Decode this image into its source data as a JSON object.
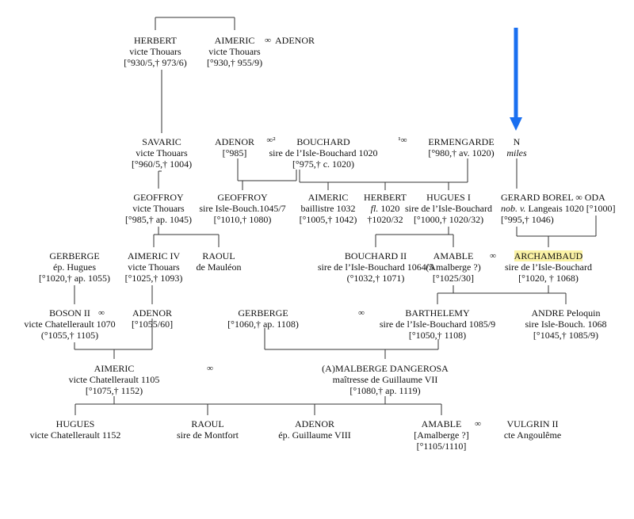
{
  "diagram": {
    "arrow_color": "#1a6ff0",
    "highlight_color": "#fbf3a6",
    "marriage_symbol": "∞",
    "marriage_symbol_2": "∞²",
    "marriage_symbol_1": "¹∞",
    "nodes": {
      "herbert_1": [
        "HERBERT",
        "victe Thouars",
        "[°930/5,† 973/6)"
      ],
      "aimeric_1": [
        "AIMERIC",
        "victe Thouars",
        "[°930,† 955/9)"
      ],
      "adenor_1": [
        "ADENOR"
      ],
      "savaric": [
        "SAVARIC",
        "victe Thouars",
        "[°960/5,† 1004)"
      ],
      "adenor_2": [
        "ADENOR",
        "[°985]"
      ],
      "bouchard_1": [
        "BOUCHARD",
        "sire de l’Isle-Bouchard 1020",
        "[°975,† c. 1020)"
      ],
      "ermengarde": [
        "ERMENGARDE",
        "[°980,† av. 1020)"
      ],
      "n_miles": [
        "N",
        "miles"
      ],
      "geoffroy_1": [
        "GEOFFROY",
        "victe Thouars",
        "[°985,† ap. 1045)"
      ],
      "geoffroy_2": [
        "GEOFFROY",
        "sire Isle-Bouch.1045/7",
        "[°1010,† 1080)"
      ],
      "aimeric_2": [
        "AIMERIC",
        "baillistre 1032",
        "[°1005,† 1042)"
      ],
      "herbert_2": [
        "HERBERT",
        "fl. 1020",
        "†1020/32"
      ],
      "hugues_1": [
        "HUGUES I",
        "sire de l’Isle-Bouchard",
        "[°1000,† 1020/32)"
      ],
      "gerard_borel": [
        "GERARD BOREL ∞ ODA",
        "nob. v. Langeais 1020 [°1000]",
        "[°995,† 1046)"
      ],
      "gerberge_1": [
        "GERBERGE",
        "ép. Hugues",
        "[°1020,† ap. 1055)"
      ],
      "aimeric_4": [
        "AIMERIC IV",
        "victe Thouars",
        "[°1025,† 1093)"
      ],
      "raoul_1": [
        "RAOUL",
        "de Mauléon"
      ],
      "bouchard_2": [
        "BOUCHARD II",
        "sire de l’Isle-Bouchard 1064/5",
        "(°1032,† 1071)"
      ],
      "amable_1": [
        "AMABLE",
        "(Amalberge ?)",
        "[°1025/30]"
      ],
      "archambaud": [
        "ARCHAMBAUD",
        "sire de l’Isle-Bouchard",
        "[°1020, † 1068)"
      ],
      "boson_2": [
        "BOSON II",
        "victe Chatellerault 1070",
        "(°1055,† 1105)"
      ],
      "adenor_3": [
        "ADENOR",
        "[°1055/60]"
      ],
      "gerberge_2": [
        "GERBERGE",
        "[°1060,† ap. 1108)"
      ],
      "barthelemy": [
        "BARTHELEMY",
        "sire de l’Isle-Bouchard 1085/9",
        "[°1050,† 1108)"
      ],
      "andre": [
        "ANDRE Peloquin",
        "sire Isle-Bouch. 1068",
        "[°1045,† 1085/9)"
      ],
      "aimeric_5": [
        "AIMERIC",
        "victe Chatellerault 1105",
        "[°1075,† 1152)"
      ],
      "malberge": [
        "(A)MALBERGE DANGEROSA",
        "maîtresse de Guillaume VII",
        "[°1080,† ap. 1119)"
      ],
      "hugues_2": [
        "HUGUES",
        "victe Chatellerault 1152"
      ],
      "raoul_2": [
        "RAOUL",
        "sire de Montfort"
      ],
      "adenor_4": [
        "ADENOR",
        "ép. Guillaume VIII"
      ],
      "amable_2": [
        "AMABLE",
        "[Amalberge ?]",
        "[°1105/1110]"
      ],
      "vulgrin": [
        "VULGRIN II",
        "cte Angoulême"
      ]
    }
  }
}
